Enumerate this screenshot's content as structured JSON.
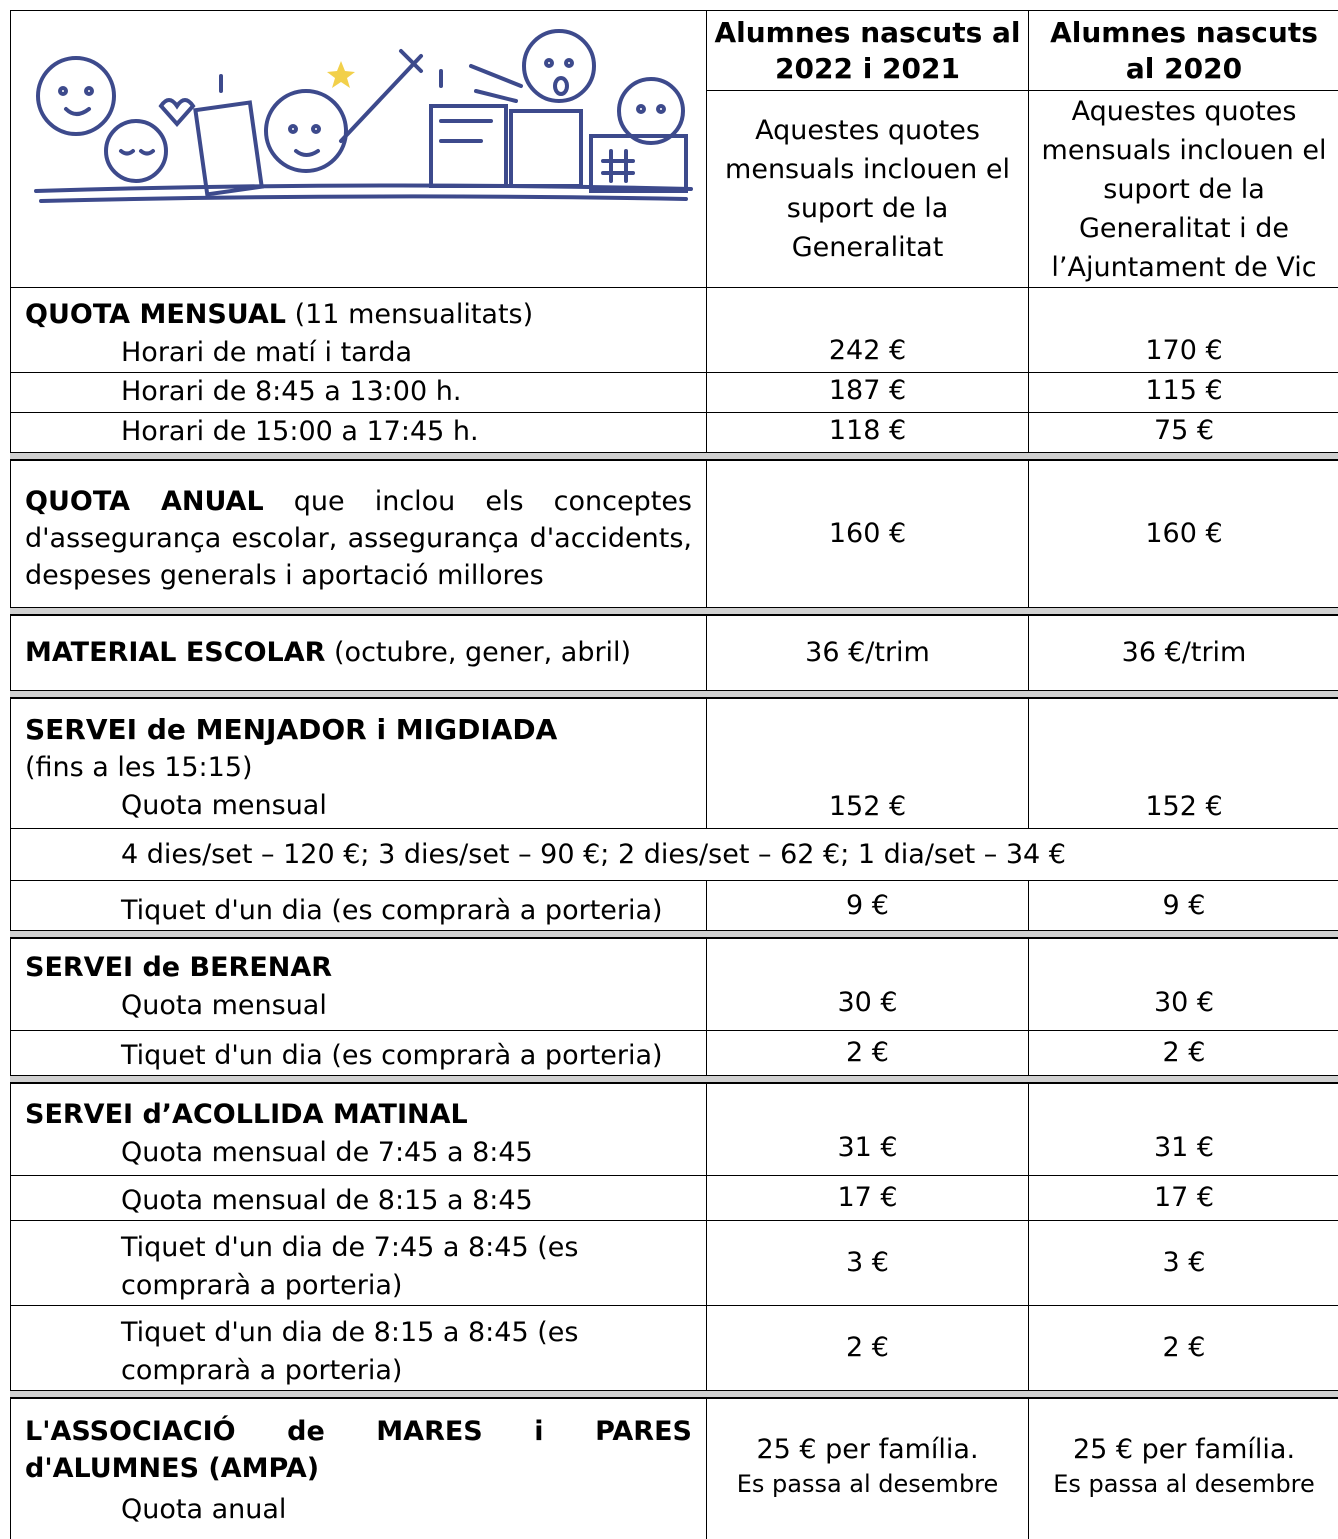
{
  "header": {
    "columns": [
      {
        "title": "Alumnes nascuts al 2022 i 2021",
        "note": "Aquestes quotes mensuals inclouen el suport de la Generalitat"
      },
      {
        "title": "Alumnes nascuts al 2020",
        "note": "Aquestes quotes mensuals inclouen el suport de la Generalitat i de l’Ajuntament de Vic"
      }
    ]
  },
  "sections": [
    {
      "title": "QUOTA MENSUAL",
      "note": "(11 mensualitats)",
      "rows": [
        {
          "label": "Horari de matí i tarda",
          "values": [
            "242 €",
            "170 €"
          ]
        },
        {
          "label": "Horari de 8:45 a 13:00 h.",
          "values": [
            "187 €",
            "115 €"
          ]
        },
        {
          "label": "Horari de 15:00 a 17:45 h.",
          "values": [
            "118 €",
            "75 €"
          ]
        }
      ]
    },
    {
      "title": "QUOTA ANUAL",
      "note": "que inclou els conceptes d'assegurança escolar, assegurança d'accidents, despeses generals  i aportació millores",
      "values": [
        "160 €",
        "160 €"
      ]
    },
    {
      "title": "MATERIAL ESCOLAR",
      "note": "(octubre, gener, abril)",
      "values": [
        "36 €/trim",
        "36 €/trim"
      ]
    },
    {
      "title": "SERVEI de MENJADOR i MIGDIADA",
      "note": "(fins a les 15:15)",
      "rows": [
        {
          "label": "Quota mensual",
          "values": [
            "152 €",
            "152 €"
          ]
        },
        {
          "label": "Tiquet d'un dia (es comprarà a porteria)",
          "values": [
            "9 €",
            "9 €"
          ]
        }
      ],
      "detail": "4 dies/set – 120 €; 3 dies/set – 90 €; 2 dies/set – 62 €; 1 dia/set – 34 €"
    },
    {
      "title": "SERVEI de BERENAR",
      "rows": [
        {
          "label": "Quota mensual",
          "values": [
            "30 €",
            "30 €"
          ]
        },
        {
          "label": "Tiquet d'un dia (es comprarà a porteria)",
          "values": [
            "2 €",
            "2 €"
          ]
        }
      ]
    },
    {
      "title": "SERVEI d’ACOLLIDA MATINAL",
      "rows": [
        {
          "label": "Quota mensual de 7:45 a 8:45",
          "values": [
            "31 €",
            "31 €"
          ]
        },
        {
          "label": "Quota mensual de 8:15 a 8:45",
          "values": [
            "17 €",
            "17 €"
          ]
        },
        {
          "label": "Tiquet d'un dia de 7:45 a 8:45 (es comprarà a porteria)",
          "values": [
            "3 €",
            "3 €"
          ]
        },
        {
          "label": "Tiquet d'un dia de 8:15 a 8:45 (es comprarà a porteria)",
          "values": [
            "2 €",
            "2 €"
          ]
        }
      ]
    },
    {
      "title": "L'ASSOCIACIÓ de MARES i PARES d'ALUMNES (AMPA)",
      "rows": [
        {
          "label": "Quota anual",
          "values": [
            "25 € per família.",
            "25 € per família."
          ],
          "value_notes": [
            "Es passa al desembre",
            "Es passa al desembre"
          ]
        }
      ]
    }
  ]
}
